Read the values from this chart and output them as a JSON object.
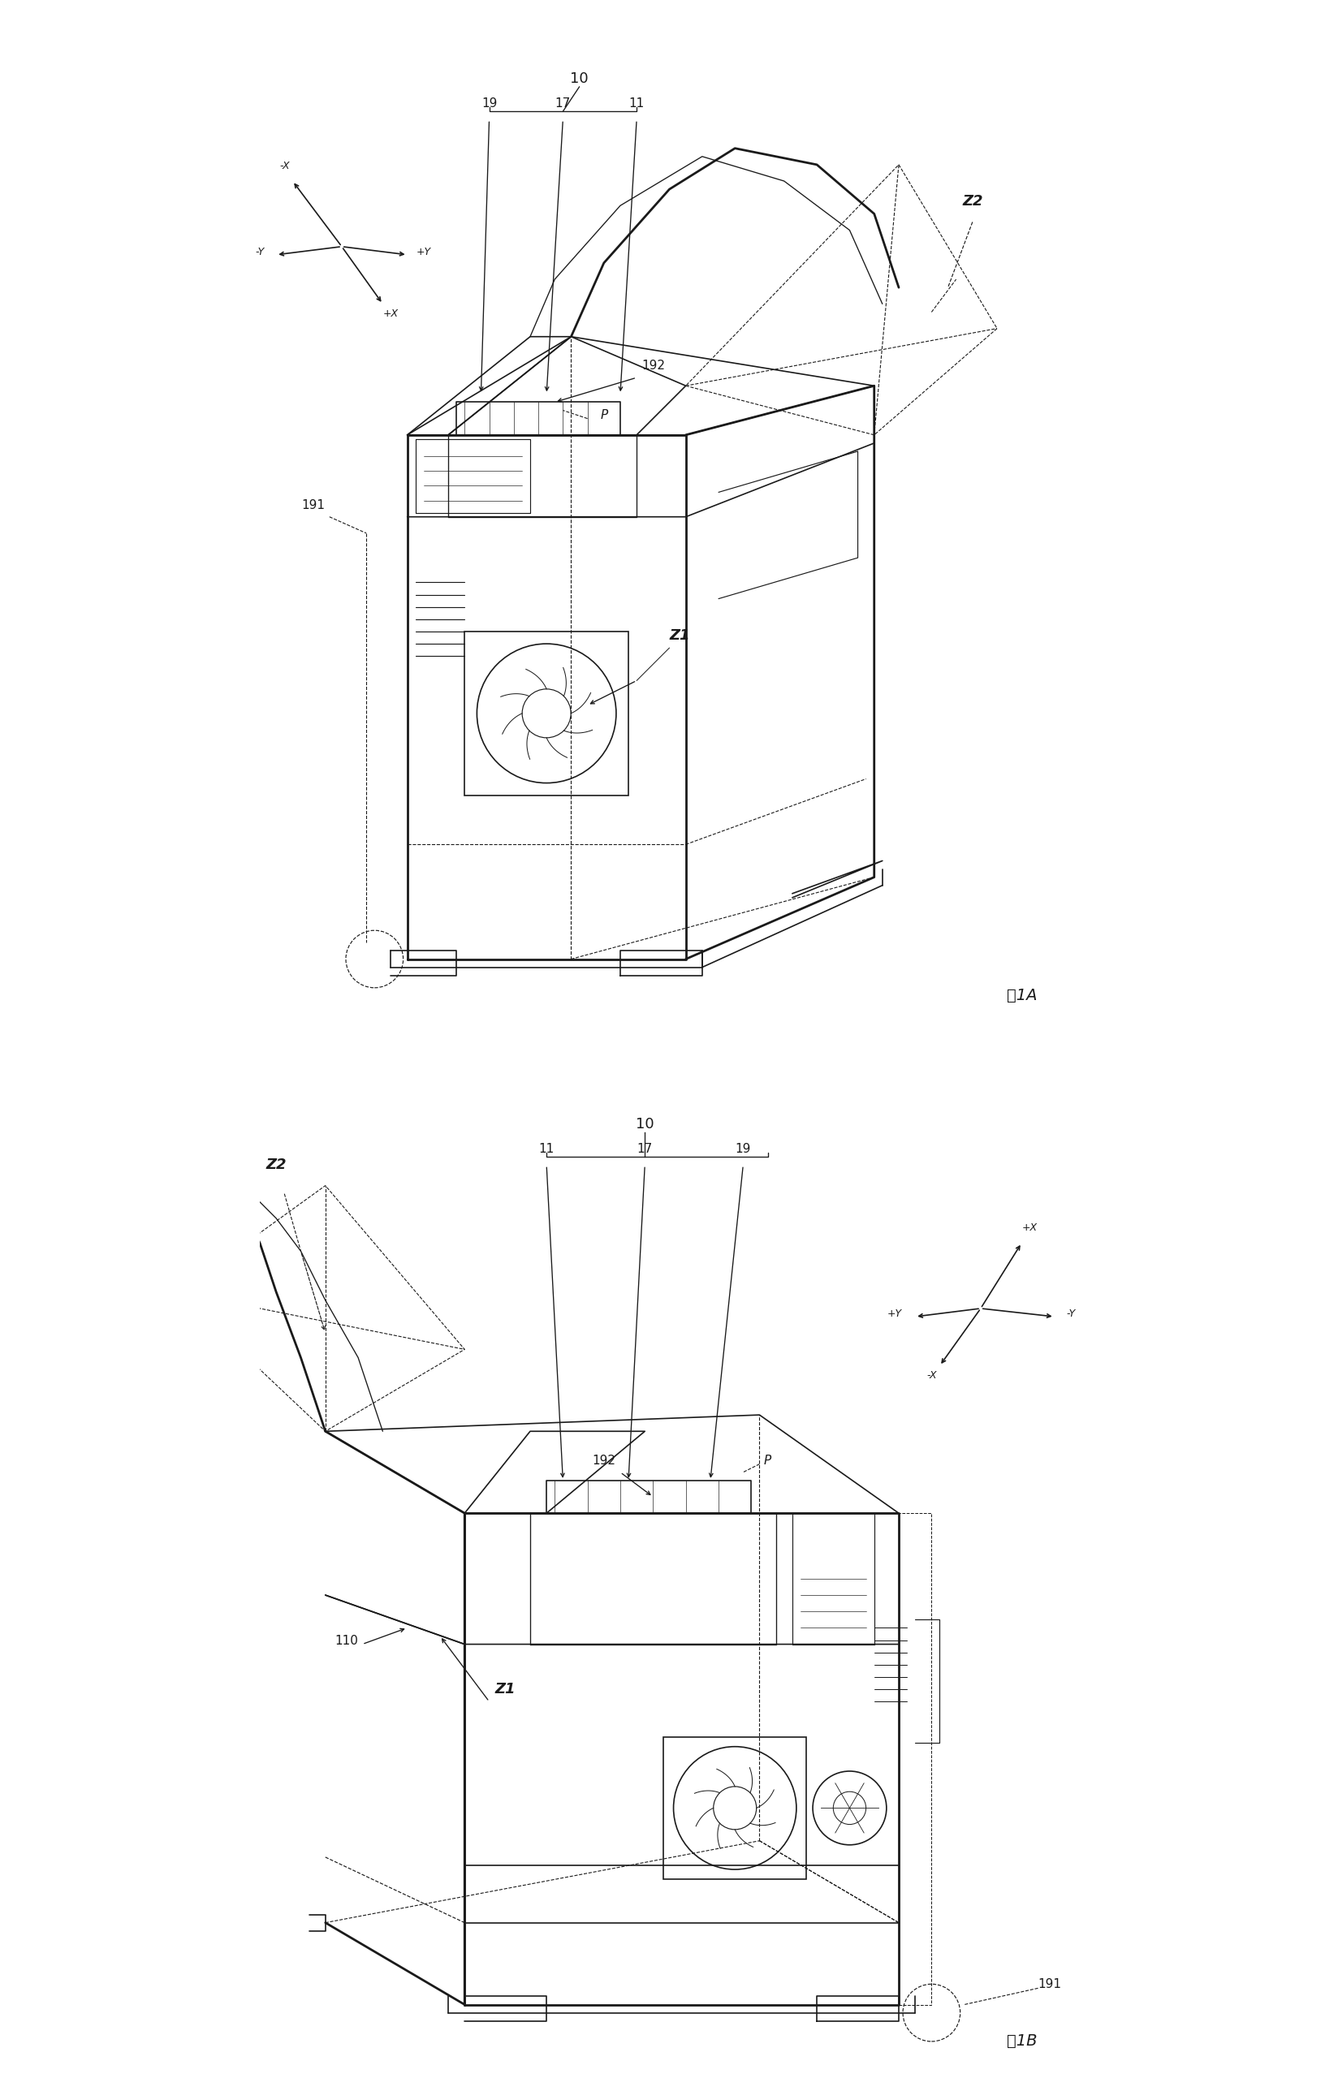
{
  "fig_width": 16.49,
  "fig_height": 25.76,
  "bg_color": "#ffffff",
  "line_color": "#1a1a1a",
  "lw": 1.2,
  "tlw": 2.0,
  "labels": {
    "fig1A": "图1A",
    "fig1B": "图1B",
    "10a": "10",
    "19a": "19",
    "17a": "17",
    "11a": "11",
    "Z2a": "Z2",
    "Z1a": "Z1",
    "Pa": "P",
    "192a": "192",
    "191a": "191",
    "negXa": "-X",
    "negYa": "-Y",
    "posYa": "+Y",
    "posXa": "+X",
    "10b": "10",
    "11b": "11",
    "17b": "17",
    "19b": "19",
    "Z2b": "Z2",
    "Z1b": "Z1",
    "Pb": "P",
    "192b": "192",
    "191b": "191",
    "110b": "110",
    "posXb": "+X",
    "negYb": "-Y",
    "posYb": "+Y",
    "negXb": "-X"
  }
}
